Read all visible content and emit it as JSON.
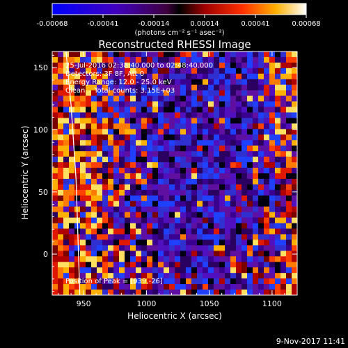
{
  "chart_data": {
    "type": "heatmap",
    "title": "Reconstructed RHESSI Image",
    "xlabel": "Heliocentric X (arcsec)",
    "ylabel": "Heliocentric Y (arcsec)",
    "xlim": [
      925,
      1120
    ],
    "ylim": [
      -33,
      163
    ],
    "x_ticks": [
      "950",
      "1000",
      "1050",
      "1100"
    ],
    "y_ticks": [
      "0",
      "50",
      "100",
      "150"
    ],
    "colorbar": {
      "ticks": [
        "-0.00068",
        "-0.00041",
        "-0.00014",
        "0.00014",
        "0.00041",
        "0.00068"
      ],
      "range": [
        -0.00068,
        0.00068
      ],
      "units": "(photons cm⁻² s⁻¹ asec⁻²)"
    },
    "annotations": {
      "time": "25-Jul-2016 02:38:40.000 to 02:48:40.000",
      "detectors": "Detectors: 3F 8F, Att 0",
      "energy": "Energy Range: 12.0 - 25.0 keV",
      "clean": "Clean    Total counts: 3.15E+03",
      "peak": "Position of Peak = [939,-26]"
    },
    "limb_points": [
      [
        936,
        163
      ],
      [
        940,
        120
      ],
      [
        944,
        60
      ],
      [
        947,
        -33
      ]
    ]
  },
  "footer": {
    "timestamp": "9-Nov-2017 11:41"
  },
  "colors": {
    "background": "#000000",
    "text": "#ffffff"
  }
}
